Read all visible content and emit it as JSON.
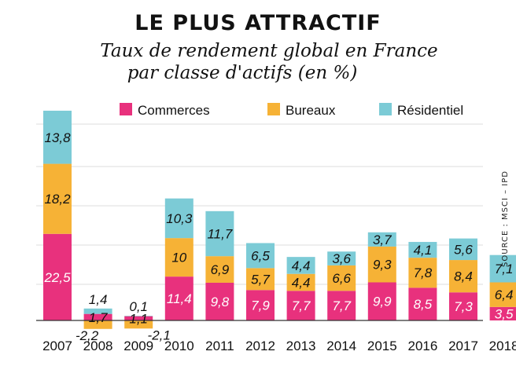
{
  "title": "LE PLUS ATTRACTIF",
  "subtitle_line1": "Taux de rendement global en France",
  "subtitle_line2": "par classe d'actifs (en %)",
  "source": "SOURCE : MSCI – IPD",
  "colors": {
    "Commerces": "#e8317d",
    "Bureaux": "#f6b236",
    "Résidentiel": "#7ccbd6"
  },
  "chart_data": {
    "type": "bar",
    "stacked": true,
    "categories": [
      "2007",
      "2008",
      "2009",
      "2010",
      "2011",
      "2012",
      "2013",
      "2014",
      "2015",
      "2016",
      "2017",
      "2018"
    ],
    "series": [
      {
        "name": "Commerces",
        "values": [
          22.5,
          1.7,
          1.1,
          11.4,
          9.8,
          7.9,
          7.7,
          7.7,
          9.9,
          8.5,
          7.3,
          3.5
        ]
      },
      {
        "name": "Bureaux",
        "values": [
          18.2,
          -2.2,
          -2.1,
          10,
          6.9,
          5.7,
          4.4,
          6.6,
          9.3,
          7.8,
          8.4,
          6.4
        ]
      },
      {
        "name": "Résidentiel",
        "values": [
          13.8,
          1.4,
          0.1,
          10.3,
          11.7,
          6.5,
          4.4,
          3.6,
          3.7,
          4.1,
          5.6,
          7.1
        ]
      }
    ],
    "data_labels": [
      [
        "22,5",
        "18,2",
        "13,8"
      ],
      [
        "1,7",
        "-2,2",
        "1,4"
      ],
      [
        "1,1",
        "-2,1",
        "0,1"
      ],
      [
        "11,4",
        "10",
        "10,3"
      ],
      [
        "9,8",
        "6,9",
        "11,7"
      ],
      [
        "7,9",
        "5,7",
        "6,5"
      ],
      [
        "7,7",
        "4,4",
        "4,4"
      ],
      [
        "7,7",
        "6,6",
        "3,6"
      ],
      [
        "9,9",
        "9,3",
        "3,7"
      ],
      [
        "8,5",
        "7,8",
        "4,1"
      ],
      [
        "7,3",
        "8,4",
        "5,6"
      ],
      [
        "3,5",
        "6,4",
        "7,1"
      ]
    ],
    "legend_position": "top",
    "grid": true,
    "ylim": [
      -4,
      60
    ]
  }
}
